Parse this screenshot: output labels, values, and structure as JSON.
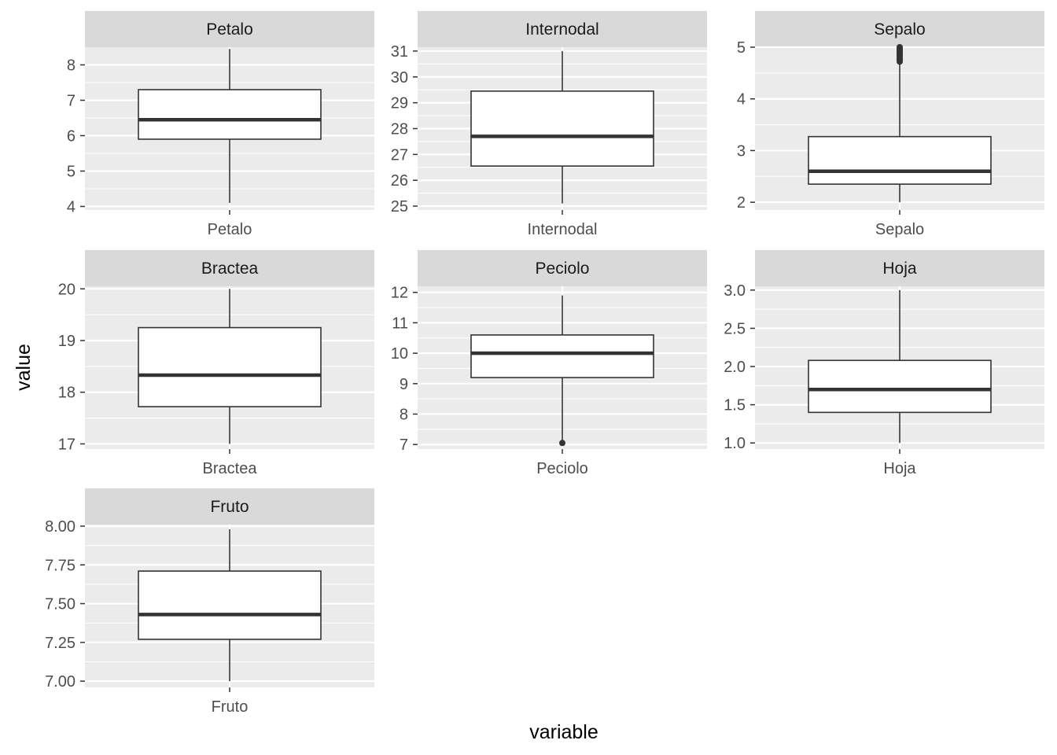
{
  "xlabel": "variable",
  "ylabel": "value",
  "colors": {
    "panel_bg": "#ebebeb",
    "strip_bg": "#d9d9d9",
    "grid": "#ffffff",
    "box_fill": "#ffffff",
    "box_stroke": "#333333",
    "tick": "#333333"
  },
  "chart_data": [
    {
      "type": "boxplot",
      "title": "Petalo",
      "category": "Petalo",
      "ylim": [
        3.9,
        8.5
      ],
      "yticks": [
        4,
        5,
        6,
        7,
        8
      ],
      "box": {
        "whisker_low": 4.1,
        "q1": 5.9,
        "median": 6.45,
        "q3": 7.3,
        "whisker_high": 8.45
      },
      "outliers": []
    },
    {
      "type": "boxplot",
      "title": "Internodal",
      "category": "Internodal",
      "ylim": [
        24.85,
        31.15
      ],
      "yticks": [
        25,
        26,
        27,
        28,
        29,
        30,
        31
      ],
      "box": {
        "whisker_low": 25.1,
        "q1": 26.55,
        "median": 27.7,
        "q3": 29.45,
        "whisker_high": 31.0
      },
      "outliers": []
    },
    {
      "type": "boxplot",
      "title": "Sepalo",
      "category": "Sepalo",
      "ylim": [
        1.85,
        5.0
      ],
      "yticks": [
        2,
        3,
        4,
        5
      ],
      "box": {
        "whisker_low": 2.0,
        "q1": 2.35,
        "median": 2.6,
        "q3": 3.27,
        "whisker_high": 4.7
      },
      "outliers": [
        4.72,
        4.75,
        4.78,
        4.8,
        4.83,
        4.85,
        4.88,
        4.9,
        4.93,
        4.95,
        4.98,
        5.0
      ]
    },
    {
      "type": "boxplot",
      "title": "Bractea",
      "category": "Bractea",
      "ylim": [
        16.9,
        20.05
      ],
      "yticks": [
        17,
        18,
        19,
        20
      ],
      "box": {
        "whisker_low": 17.0,
        "q1": 17.72,
        "median": 18.33,
        "q3": 19.25,
        "whisker_high": 20.0
      },
      "outliers": []
    },
    {
      "type": "boxplot",
      "title": "Peciolo",
      "category": "Peciolo",
      "ylim": [
        6.85,
        12.2
      ],
      "yticks": [
        7,
        8,
        9,
        10,
        11,
        12
      ],
      "box": {
        "whisker_low": 7.05,
        "q1": 9.2,
        "median": 10.0,
        "q3": 10.6,
        "whisker_high": 11.9
      },
      "outliers": [
        7.05
      ]
    },
    {
      "type": "boxplot",
      "title": "Hoja",
      "category": "Hoja",
      "ylim": [
        0.92,
        3.05
      ],
      "yticks": [
        1.0,
        1.5,
        2.0,
        2.5,
        3.0
      ],
      "ytick_labels": [
        "1.0",
        "1.5",
        "2.0",
        "2.5",
        "3.0"
      ],
      "box": {
        "whisker_low": 1.0,
        "q1": 1.4,
        "median": 1.7,
        "q3": 2.08,
        "whisker_high": 3.0
      },
      "outliers": []
    },
    {
      "type": "boxplot",
      "title": "Fruto",
      "category": "Fruto",
      "ylim": [
        6.96,
        8.01
      ],
      "yticks": [
        7.0,
        7.25,
        7.5,
        7.75,
        8.0
      ],
      "ytick_labels": [
        "7.00",
        "7.25",
        "7.50",
        "7.75",
        "8.00"
      ],
      "box": {
        "whisker_low": 7.0,
        "q1": 7.27,
        "median": 7.43,
        "q3": 7.71,
        "whisker_high": 7.98
      },
      "outliers": []
    }
  ]
}
